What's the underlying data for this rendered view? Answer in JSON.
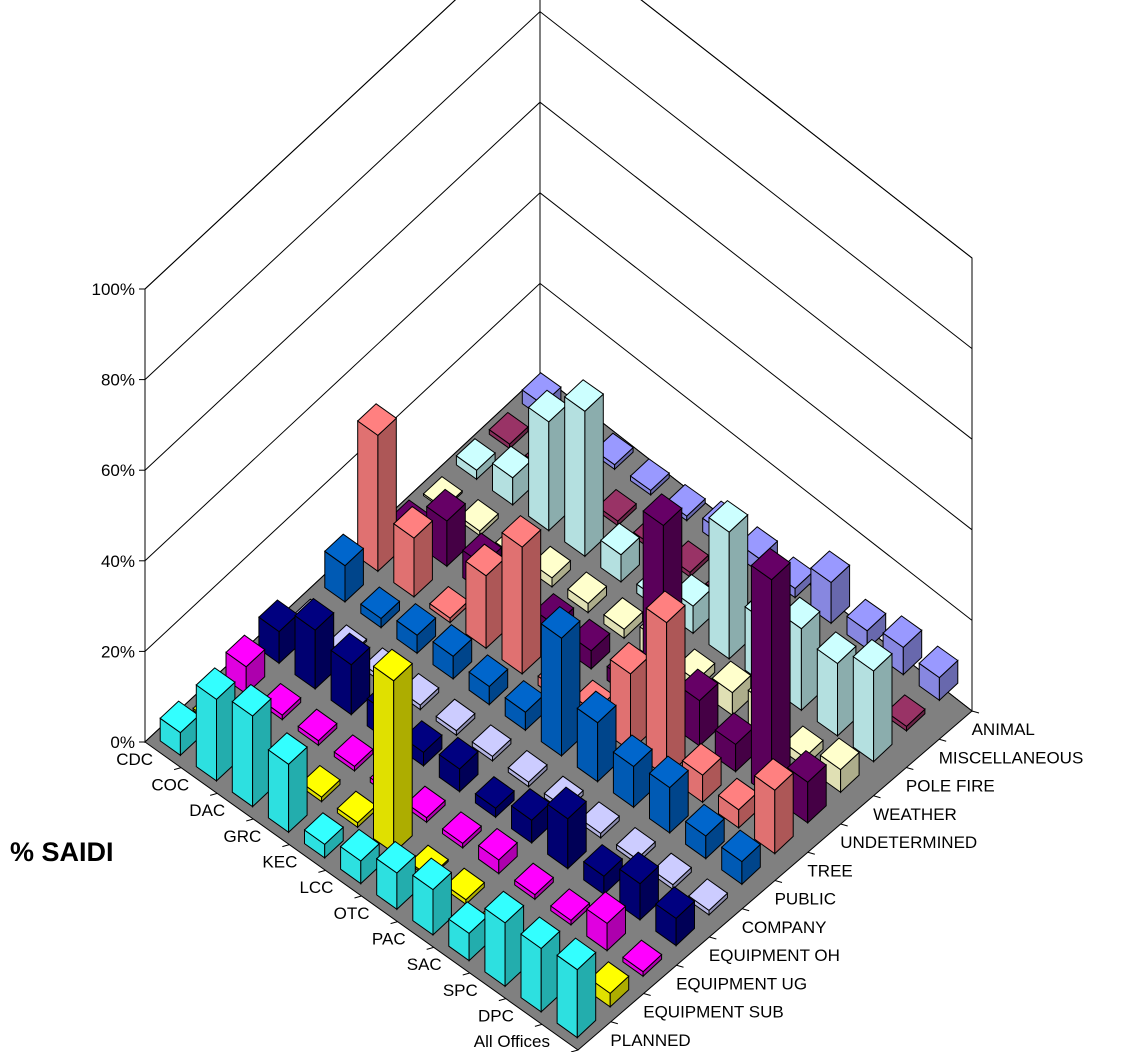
{
  "chart_data": {
    "type": "bar",
    "subtype": "3d-column",
    "ylabel": "% SAIDI",
    "y_ticks": [
      "0%",
      "20%",
      "40%",
      "60%",
      "80%",
      "100%"
    ],
    "ylim": [
      0,
      100
    ],
    "offices": [
      "CDC",
      "COC",
      "DAC",
      "GRC",
      "KEC",
      "LCC",
      "OTC",
      "PAC",
      "SAC",
      "SPC",
      "DPC",
      "All Offices"
    ],
    "causes": [
      "PLANNED",
      "EQUIPMENT SUB",
      "EQUIPMENT UG",
      "EQUIPMENT OH",
      "COMPANY",
      "PUBLIC",
      "TREE",
      "UNDETERMINED",
      "WEATHER",
      "POLE FIRE",
      "MISCELLANEOUS",
      "ANIMAL"
    ],
    "series_colors": {
      "PLANNED": "#33ffff",
      "EQUIPMENT SUB": "#ffff00",
      "EQUIPMENT UG": "#ff00ff",
      "EQUIPMENT OH": "#000080",
      "COMPANY": "#ccccff",
      "PUBLIC": "#0066cc",
      "TREE": "#ff8080",
      "UNDETERMINED": "#660066",
      "WEATHER": "#ffffcc",
      "POLE FIRE": "#ccffff",
      "MISCELLANEOUS": "#993366",
      "ANIMAL": "#9999ff"
    },
    "floor_color": "#808080",
    "grid": true,
    "series": [
      {
        "name": "PLANNED",
        "values": [
          5,
          18,
          20,
          15,
          3,
          5,
          8,
          10,
          6,
          14,
          14,
          15
        ]
      },
      {
        "name": "EQUIPMENT SUB",
        "values": [
          0,
          0,
          0,
          1,
          1,
          38,
          0,
          1,
          0,
          0,
          0,
          3
        ]
      },
      {
        "name": "EQUIPMENT UG",
        "values": [
          6,
          1,
          1,
          1,
          1,
          1,
          1,
          3,
          1,
          1,
          6,
          1
        ]
      },
      {
        "name": "EQUIPMENT OH",
        "values": [
          7,
          13,
          11,
          6,
          3,
          5,
          2,
          5,
          11,
          4,
          8,
          6
        ]
      },
      {
        "name": "COMPANY",
        "values": [
          0,
          0,
          1,
          1,
          1,
          1,
          1,
          1,
          1,
          1,
          1,
          1
        ]
      },
      {
        "name": "PUBLIC",
        "values": [
          8,
          2,
          4,
          5,
          4,
          4,
          26,
          13,
          9,
          10,
          5,
          5
        ]
      },
      {
        "name": "TREE",
        "values": [
          30,
          13,
          1,
          16,
          28,
          2,
          3,
          17,
          34,
          6,
          4,
          14
        ]
      },
      {
        "name": "UNDETERMINED",
        "values": [
          2,
          10,
          6,
          4,
          4,
          4,
          3,
          43,
          10,
          6,
          48,
          9
        ]
      },
      {
        "name": "WEATHER",
        "values": [
          0,
          1,
          1,
          2,
          2,
          2,
          5,
          2,
          5,
          8,
          2,
          5
        ]
      },
      {
        "name": "POLE FIRE",
        "values": [
          2,
          6,
          24,
          32,
          6,
          2,
          6,
          28,
          14,
          18,
          16,
          20
        ]
      },
      {
        "name": "MISCELLANEOUS",
        "values": [
          1,
          1,
          1,
          1,
          1,
          1,
          1,
          1,
          1,
          1,
          1,
          1
        ]
      },
      {
        "name": "ANIMAL",
        "values": [
          3,
          1,
          1,
          1,
          1,
          3,
          3,
          2,
          9,
          4,
          6,
          5
        ]
      }
    ]
  }
}
